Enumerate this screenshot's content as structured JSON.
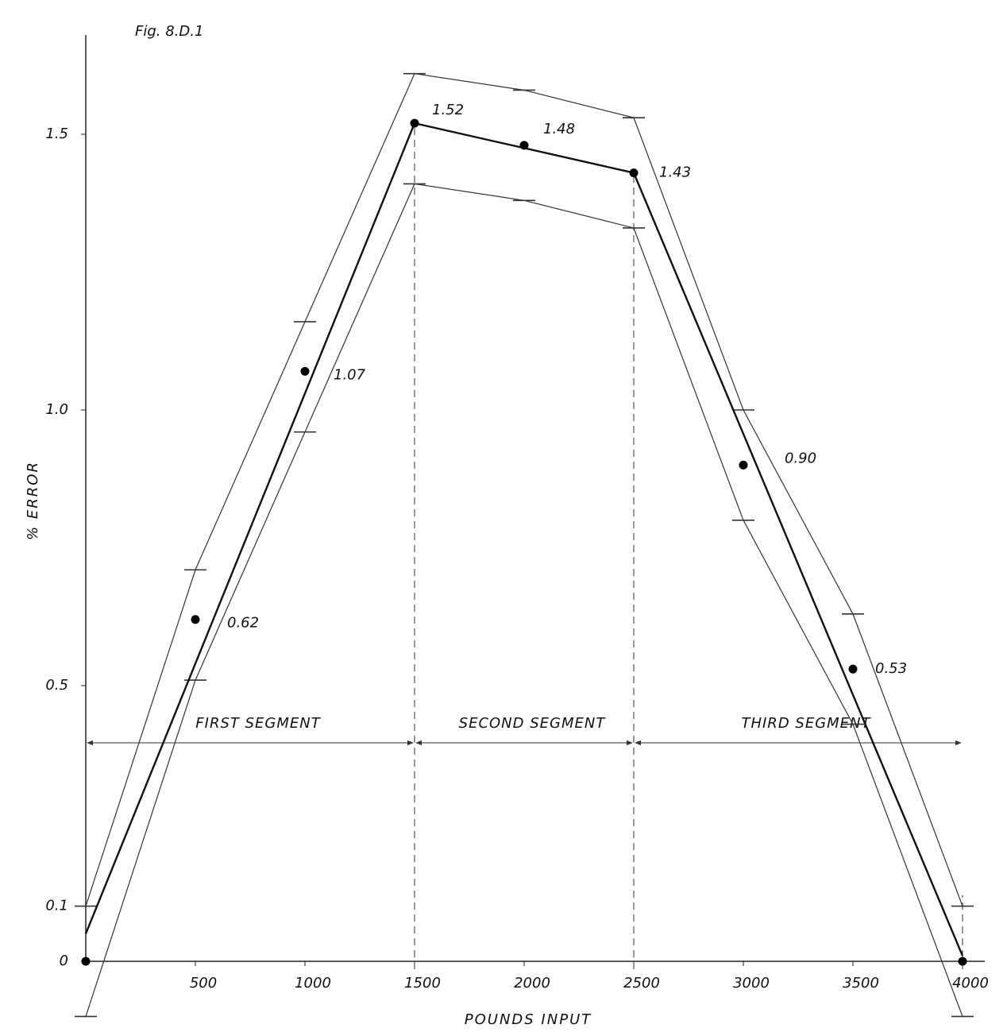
{
  "chart_data": {
    "type": "line",
    "title": "Fig. 8.D.1",
    "x_label": "POUNDS INPUT",
    "y_label": "% ERROR",
    "xlim": [
      0,
      4000
    ],
    "ylim": [
      -0.1,
      1.68
    ],
    "xticks": [
      500,
      1000,
      1500,
      2000,
      2500,
      3000,
      3500,
      4000
    ],
    "yticks": [
      0,
      0.1,
      0.5,
      {
        "value": 1,
        "label": "1.0"
      },
      1.5
    ],
    "series": [
      {
        "mark": "band",
        "color": "#333333",
        "x": [
          0,
          500,
          1000,
          1500,
          2000,
          2500,
          3000,
          3500,
          4000
        ],
        "values": [
          0.1,
          0.71,
          1.16,
          1.61,
          1.58,
          1.53,
          1.0,
          0.63,
          0.1
        ]
      },
      {
        "mark": "band",
        "color": "#333333",
        "x": [
          0,
          500,
          1000,
          1500,
          2000,
          2500,
          3000,
          3500,
          4000
        ],
        "values": [
          -0.1,
          0.51,
          0.96,
          1.41,
          1.38,
          1.33,
          0.8,
          0.43,
          -0.1
        ]
      },
      {
        "mark": "line",
        "color": "#111111",
        "x": [
          0,
          1500,
          2500,
          4000
        ],
        "values": [
          0.05,
          1.52,
          1.43,
          0.01
        ]
      },
      {
        "mark": "dot",
        "color": "#000000",
        "x": [
          0,
          500,
          1000,
          1500,
          2000,
          2500,
          3000,
          3500,
          4000
        ],
        "values": [
          0,
          0.62,
          1.07,
          1.52,
          1.48,
          1.43,
          0.9,
          0.53,
          0
        ],
        "value_labels": [
          null,
          "0.62",
          "1.07",
          "1.52",
          "1.48",
          "1.43",
          "0.90",
          "0.53",
          null
        ]
      }
    ],
    "segments": {
      "boundaries": [
        0,
        1500,
        2500,
        4000
      ],
      "labels": [
        "FIRST SEGMENT",
        "SECOND SEGMENT",
        "THIRD SEGMENT"
      ]
    }
  }
}
